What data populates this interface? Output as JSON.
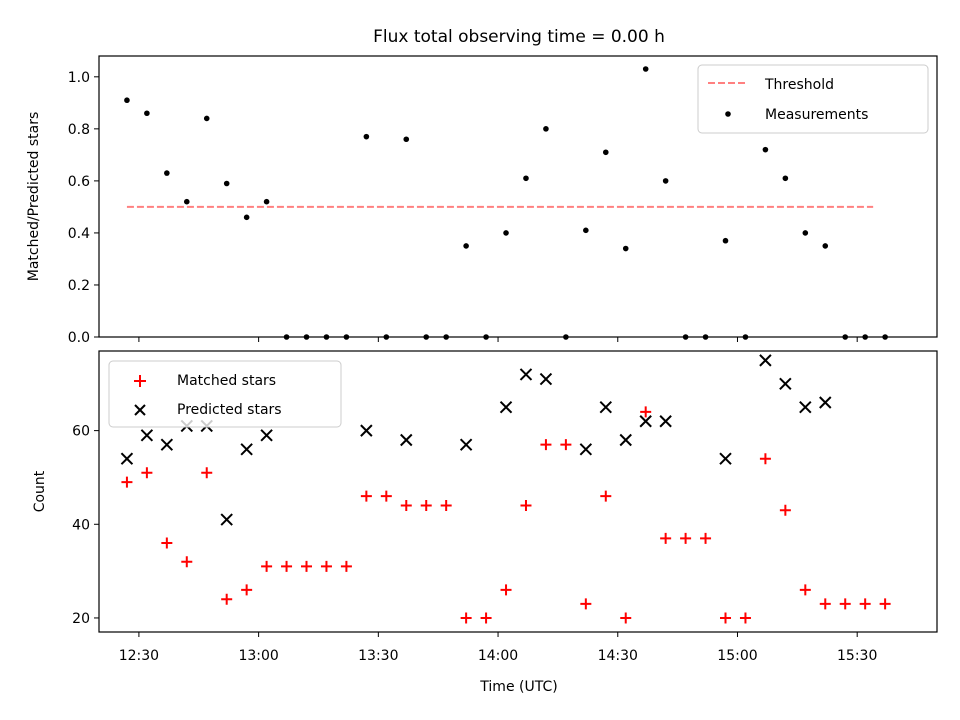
{
  "chart_data": [
    {
      "type": "scatter",
      "title": "Flux total observing time = 0.00 h",
      "xlabel": "",
      "ylabel": "Matched/Predicted stars",
      "xlim": [
        "12:20",
        "15:50"
      ],
      "ylim": [
        0,
        1.08
      ],
      "yticks": [
        0.0,
        0.2,
        0.4,
        0.6,
        0.8,
        1.0
      ],
      "ytick_labels": [
        "0.0",
        "0.2",
        "0.4",
        "0.6",
        "0.8",
        "1.0"
      ],
      "legend": "top-right",
      "threshold": {
        "name": "Threshold",
        "value": 0.5,
        "x_start": "12:27",
        "x_end": "15:34",
        "color": "#ff8080",
        "style": "dashed"
      },
      "series": [
        {
          "name": "Measurements",
          "color": "#000000",
          "marker": "dot",
          "x": [
            "12:27",
            "12:32",
            "12:37",
            "12:42",
            "12:47",
            "12:52",
            "12:57",
            "13:02",
            "13:07",
            "13:12",
            "13:17",
            "13:22",
            "13:27",
            "13:32",
            "13:37",
            "13:42",
            "13:47",
            "13:52",
            "13:57",
            "14:02",
            "14:07",
            "14:12",
            "14:17",
            "14:22",
            "14:27",
            "14:32",
            "14:37",
            "14:42",
            "14:47",
            "14:52",
            "14:57",
            "15:02",
            "15:07",
            "15:12",
            "15:17",
            "15:22",
            "15:27",
            "15:32",
            "15:37"
          ],
          "y": [
            0.91,
            0.86,
            0.63,
            0.52,
            0.84,
            0.59,
            0.46,
            0.52,
            0.0,
            0.0,
            0.0,
            0.0,
            0.77,
            0.0,
            0.76,
            0.0,
            0.0,
            0.35,
            0.0,
            0.4,
            0.61,
            0.8,
            0.0,
            0.41,
            0.71,
            0.34,
            1.03,
            0.6,
            0.0,
            0.0,
            0.37,
            0.0,
            0.72,
            0.61,
            0.4,
            0.35,
            0.0,
            0.0,
            0.0
          ]
        }
      ]
    },
    {
      "type": "scatter",
      "title": "",
      "xlabel": "Time (UTC)",
      "ylabel": "Count",
      "xlim": [
        "12:20",
        "15:50"
      ],
      "ylim": [
        17,
        77
      ],
      "yticks": [
        20,
        40,
        60
      ],
      "ytick_labels": [
        "20",
        "40",
        "60"
      ],
      "xticks": [
        "12:30",
        "13:00",
        "13:30",
        "14:00",
        "14:30",
        "15:00",
        "15:30"
      ],
      "xtick_labels": [
        "12:30",
        "13:00",
        "13:30",
        "14:00",
        "14:30",
        "15:00",
        "15:30"
      ],
      "legend": "top-left",
      "series": [
        {
          "name": "Matched stars",
          "color": "#ff0000",
          "marker": "plus",
          "x": [
            "12:27",
            "12:32",
            "12:37",
            "12:42",
            "12:47",
            "12:52",
            "12:57",
            "13:02",
            "13:07",
            "13:12",
            "13:17",
            "13:22",
            "13:27",
            "13:32",
            "13:37",
            "13:42",
            "13:47",
            "13:52",
            "13:57",
            "14:02",
            "14:07",
            "14:12",
            "14:17",
            "14:22",
            "14:27",
            "14:32",
            "14:37",
            "14:42",
            "14:47",
            "14:52",
            "14:57",
            "15:02",
            "15:07",
            "15:12",
            "15:17",
            "15:22",
            "15:27",
            "15:32",
            "15:37"
          ],
          "y": [
            49,
            51,
            36,
            32,
            51,
            24,
            26,
            31,
            31,
            31,
            31,
            31,
            46,
            46,
            44,
            44,
            44,
            20,
            20,
            26,
            44,
            57,
            57,
            23,
            46,
            20,
            64,
            37,
            37,
            37,
            20,
            20,
            54,
            43,
            26,
            23,
            23,
            23,
            23
          ]
        },
        {
          "name": "Predicted stars",
          "color": "#000000",
          "marker": "x",
          "x": [
            "12:27",
            "12:32",
            "12:37",
            "12:42",
            "12:47",
            "12:52",
            "12:57",
            "13:02",
            "13:27",
            "13:37",
            "13:52",
            "14:02",
            "14:07",
            "14:12",
            "14:22",
            "14:27",
            "14:32",
            "14:37",
            "14:42",
            "14:57",
            "15:07",
            "15:12",
            "15:17",
            "15:22"
          ],
          "y": [
            54,
            59,
            57,
            61,
            61,
            41,
            56,
            59,
            60,
            58,
            57,
            65,
            72,
            71,
            56,
            65,
            58,
            62,
            62,
            54,
            75,
            70,
            65,
            66
          ]
        }
      ]
    }
  ]
}
